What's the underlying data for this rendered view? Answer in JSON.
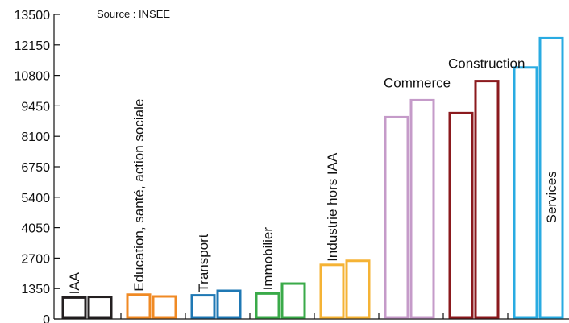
{
  "chart_data": {
    "type": "bar",
    "source_note": "Source : INSEE",
    "ylim": [
      0,
      13500
    ],
    "yticks": [
      0,
      1350,
      2700,
      4050,
      5400,
      6750,
      8100,
      9450,
      10800,
      12150,
      13500
    ],
    "grid": false,
    "groups": [
      {
        "label": "IAA",
        "color": "#231f20",
        "values": [
          950,
          980
        ],
        "label_orientation": "vertical"
      },
      {
        "label": "Education, santé, action sociale",
        "color": "#f08a24",
        "values": [
          1080,
          1000
        ],
        "label_orientation": "vertical"
      },
      {
        "label": "Transport",
        "color": "#1f78b4",
        "values": [
          1050,
          1250
        ],
        "label_orientation": "vertical"
      },
      {
        "label": "Immobilier",
        "color": "#3aaa49",
        "values": [
          1130,
          1570
        ],
        "label_orientation": "vertical"
      },
      {
        "label": "Industrie hors IAA",
        "color": "#f5b335",
        "values": [
          2400,
          2580
        ],
        "label_orientation": "vertical"
      },
      {
        "label": "Commerce",
        "color": "#c59bc9",
        "values": [
          8950,
          9700
        ],
        "label_orientation": "horizontal"
      },
      {
        "label": "Construction",
        "color": "#8b1a1e",
        "values": [
          9130,
          10550
        ],
        "label_orientation": "horizontal"
      },
      {
        "label": "Services",
        "color": "#29abe2",
        "values": [
          11150,
          12450
        ],
        "label_orientation": "vertical-inside"
      }
    ]
  }
}
